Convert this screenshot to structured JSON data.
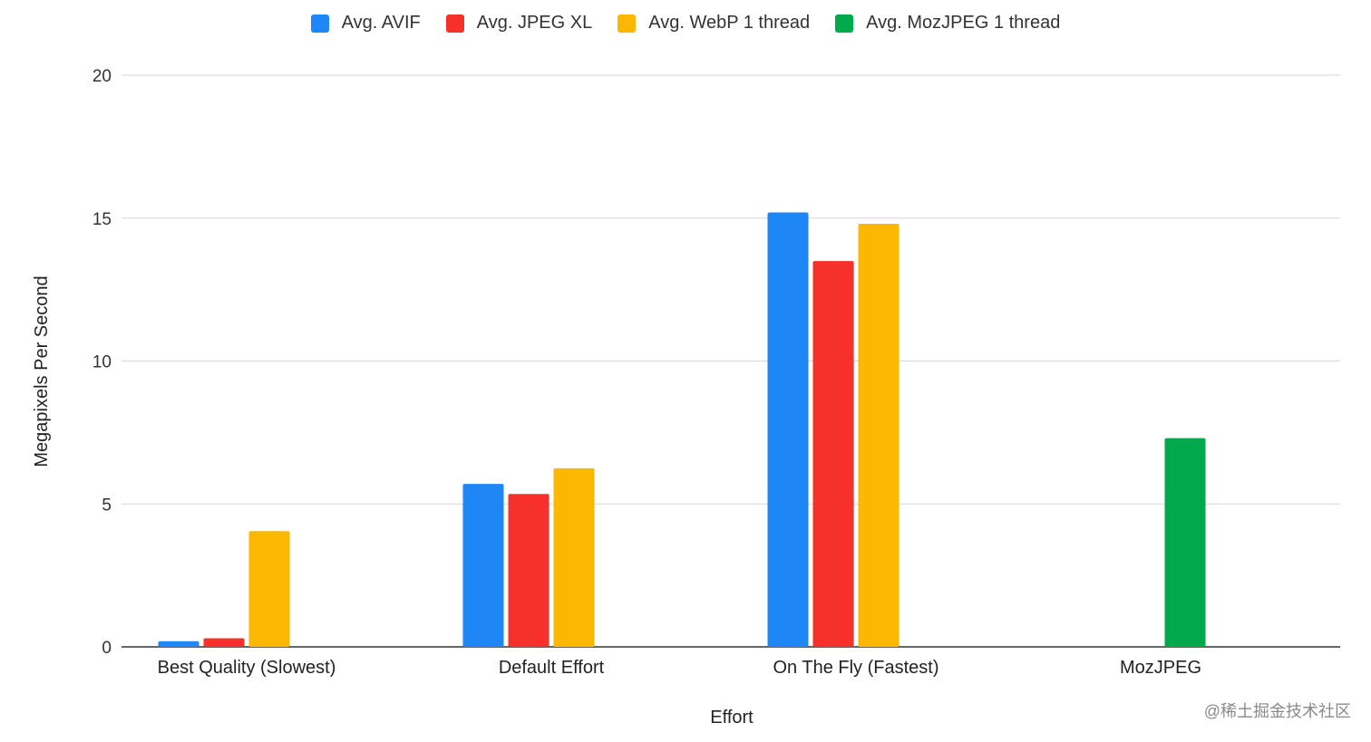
{
  "chart_data": {
    "type": "bar",
    "title": "",
    "xlabel": "Effort",
    "ylabel": "Megapixels Per Second",
    "ylim": [
      0,
      20
    ],
    "yticks": [
      0,
      5,
      10,
      15,
      20
    ],
    "grid": true,
    "legend_position": "top",
    "categories": [
      "Best Quality (Slowest)",
      "Default Effort",
      "On The Fly (Fastest)",
      "MozJPEG"
    ],
    "series": [
      {
        "name": "Avg. AVIF",
        "color": "#1f86f5",
        "values": [
          0.2,
          5.7,
          15.2,
          null
        ]
      },
      {
        "name": "Avg. JPEG XL",
        "color": "#f6302a",
        "values": [
          0.3,
          5.35,
          13.5,
          null
        ]
      },
      {
        "name": "Avg. WebP 1 thread",
        "color": "#fcb701",
        "values": [
          4.05,
          6.25,
          14.8,
          null
        ]
      },
      {
        "name": "Avg. MozJPEG 1 thread",
        "color": "#00a94c",
        "values": [
          null,
          null,
          null,
          7.3
        ]
      }
    ]
  },
  "watermark": "@稀土掘金技术社区"
}
